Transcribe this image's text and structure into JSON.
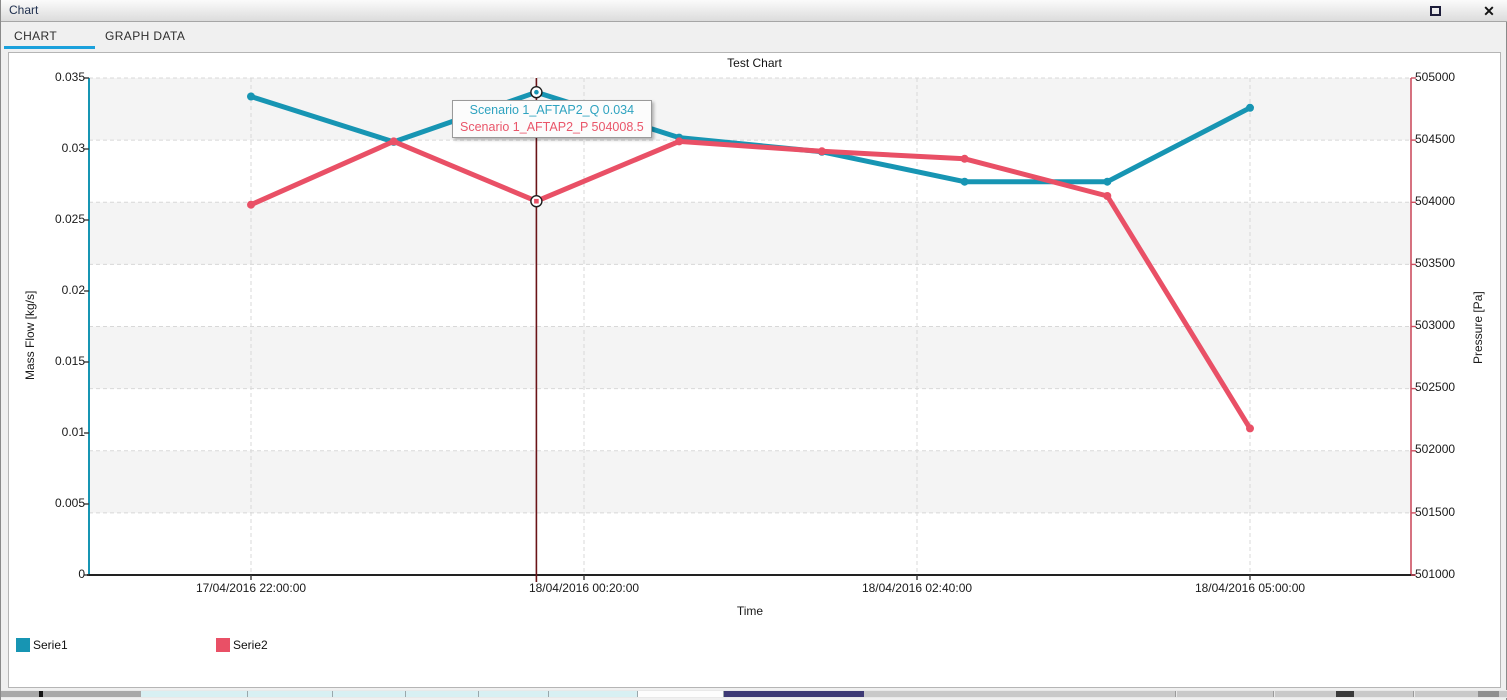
{
  "window": {
    "title": "Chart",
    "close_glyph": "✕"
  },
  "tabs": [
    {
      "label": "CHART",
      "active": true
    },
    {
      "label": "GRAPH DATA",
      "active": false
    }
  ],
  "accent_color": "#1ba1dc",
  "chart_data": {
    "type": "line",
    "title": "Test Chart",
    "xlabel": "Time",
    "x_tick_labels": [
      "17/04/2016 22:00:00",
      "18/04/2016 00:20:00",
      "18/04/2016 02:40:00",
      "18/04/2016 05:00:00"
    ],
    "x_points": [
      "17/04/2016 22:00:00",
      "17/04/2016 23:00:00",
      "18/04/2016 00:00:00",
      "18/04/2016 01:00:00",
      "18/04/2016 02:00:00",
      "18/04/2016 03:00:00",
      "18/04/2016 04:00:00",
      "18/04/2016 05:00:00"
    ],
    "left_axis": {
      "label": "Mass Flow [kg/s]",
      "min": 0,
      "max": 0.035,
      "tick_labels": [
        "0.035",
        "0.03",
        "0.025",
        "0.02",
        "0.015",
        "0.01",
        "0.005",
        "0"
      ]
    },
    "right_axis": {
      "label": "Pressure [Pa]",
      "min": 501000,
      "max": 505000,
      "tick_labels": [
        "505000",
        "504500",
        "504000",
        "503500",
        "503000",
        "502500",
        "502000",
        "501500",
        "501000"
      ]
    },
    "series": [
      {
        "name": "Serie1",
        "axis": "left",
        "color": "#1795b3",
        "values": [
          0.0337,
          0.0305,
          0.034,
          0.0308,
          0.0298,
          0.0277,
          0.0277,
          0.0329
        ]
      },
      {
        "name": "Serie2",
        "axis": "right",
        "color": "#e95066",
        "values": [
          503980,
          504490,
          504008.5,
          504490,
          504410,
          504350,
          504050,
          502180
        ]
      }
    ],
    "legend": [
      {
        "label": "Serie1",
        "color": "#1795b3"
      },
      {
        "label": "Serie2",
        "color": "#e95066"
      }
    ],
    "tooltip": {
      "point_index": 2,
      "lines": [
        {
          "text": "Scenario 1_AFTAP2_Q 0.034",
          "color": "#2fa3c0"
        },
        {
          "text": "Scenario 1_AFTAP2_P 504008.5",
          "color": "#e9566a"
        }
      ]
    },
    "crosshair_color": "#6a1418",
    "grid": true,
    "legend_position": "bottom-left"
  }
}
